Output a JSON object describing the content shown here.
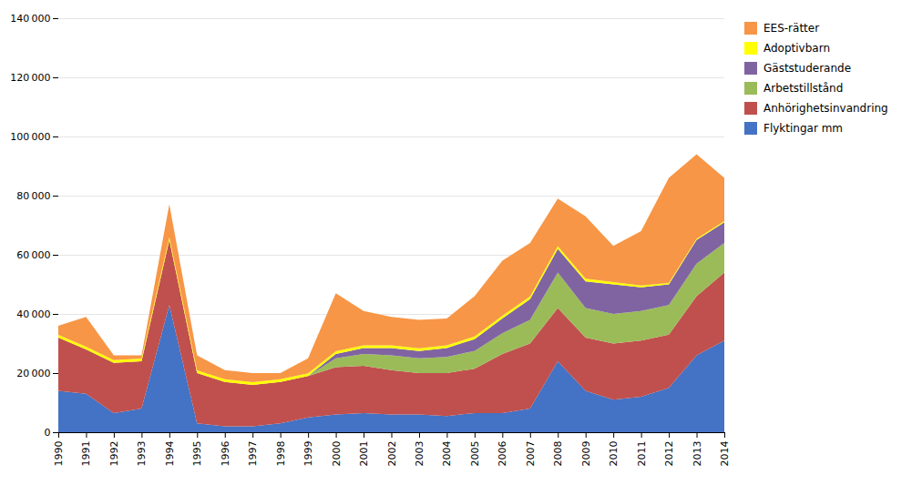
{
  "chart_data": {
    "type": "area",
    "stacked": true,
    "grid": true,
    "legend": "upper right",
    "x": [
      1990,
      1991,
      1992,
      1993,
      1994,
      1995,
      1996,
      1997,
      1998,
      1999,
      2000,
      2001,
      2002,
      2003,
      2004,
      2005,
      2006,
      2007,
      2008,
      2009,
      2010,
      2011,
      2012,
      2013,
      2014
    ],
    "xlim": [
      1990,
      2014
    ],
    "xticks": [
      1990,
      1991,
      1992,
      1993,
      1994,
      1995,
      1996,
      1997,
      1998,
      1999,
      2000,
      2001,
      2002,
      2003,
      2004,
      2005,
      2006,
      2007,
      2008,
      2009,
      2010,
      2011,
      2012,
      2013,
      2014
    ],
    "ylim": [
      0,
      140000
    ],
    "yticks": [
      0,
      {
        "value": 20000,
        "label": "20 000"
      },
      {
        "value": 40000,
        "label": "40 000"
      },
      {
        "value": 60000,
        "label": "60 000"
      },
      {
        "value": 80000,
        "label": "80 000"
      },
      {
        "value": 100000,
        "label": "100 000"
      },
      {
        "value": 120000,
        "label": "120 000"
      },
      {
        "value": 140000,
        "label": "140 000"
      }
    ],
    "series": [
      {
        "name": "Flyktingar mm",
        "color": "#4472C4",
        "values": [
          14000,
          13000,
          6500,
          8000,
          43000,
          3000,
          2000,
          2000,
          3000,
          5000,
          6000,
          6500,
          6000,
          6000,
          5500,
          6500,
          6500,
          8000,
          24000,
          14000,
          11000,
          12000,
          15000,
          26000,
          31000
        ]
      },
      {
        "name": "Anhörighetsinvandring",
        "color": "#C0504D",
        "values": [
          18000,
          15000,
          17000,
          16000,
          22000,
          17000,
          15000,
          14000,
          14000,
          14000,
          16000,
          16000,
          15000,
          14000,
          14500,
          15000,
          20000,
          22000,
          18000,
          18000,
          19000,
          19000,
          18000,
          20000,
          23000
        ]
      },
      {
        "name": "Arbetstillstånd",
        "color": "#9BBB59",
        "values": [
          0,
          0,
          0,
          0,
          0,
          0,
          0,
          0,
          0,
          0,
          3000,
          4000,
          5000,
          5000,
          5500,
          6000,
          7000,
          8000,
          12000,
          10000,
          10000,
          10000,
          10000,
          11000,
          10000
        ]
      },
      {
        "name": "Gäststuderande",
        "color": "#8064A2",
        "values": [
          0,
          0,
          0,
          0,
          0,
          0,
          0,
          0,
          0,
          0,
          1500,
          2000,
          2500,
          2500,
          3000,
          4000,
          5000,
          7000,
          8000,
          9000,
          10000,
          8000,
          7000,
          8000,
          7000
        ]
      },
      {
        "name": "Adoptivbarn",
        "color": "#FFFF00",
        "values": [
          900,
          900,
          900,
          900,
          900,
          900,
          900,
          900,
          900,
          900,
          900,
          900,
          900,
          900,
          900,
          900,
          900,
          900,
          900,
          900,
          800,
          600,
          500,
          400,
          400
        ]
      },
      {
        "name": "EES-rätter",
        "color": "#F79646",
        "values": [
          3100,
          10100,
          1600,
          1100,
          11200,
          5100,
          3100,
          3100,
          2100,
          5100,
          19600,
          11600,
          9600,
          9600,
          9100,
          13600,
          18600,
          18100,
          16100,
          21100,
          12200,
          18400,
          35500,
          28600,
          14600
        ]
      }
    ]
  }
}
